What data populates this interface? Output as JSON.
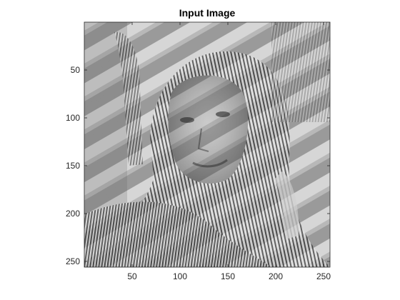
{
  "figure": {
    "title": "Input Image"
  },
  "axes": {
    "y_ticks": [
      "50",
      "100",
      "150",
      "200",
      "250"
    ],
    "x_ticks": [
      "50",
      "100",
      "150",
      "200",
      "250"
    ],
    "y_tick_values": [
      50,
      100,
      150,
      200,
      250
    ],
    "x_tick_values": [
      50,
      100,
      150,
      200,
      250
    ],
    "range": [
      0.5,
      256.5
    ],
    "colormap": "gray"
  }
}
